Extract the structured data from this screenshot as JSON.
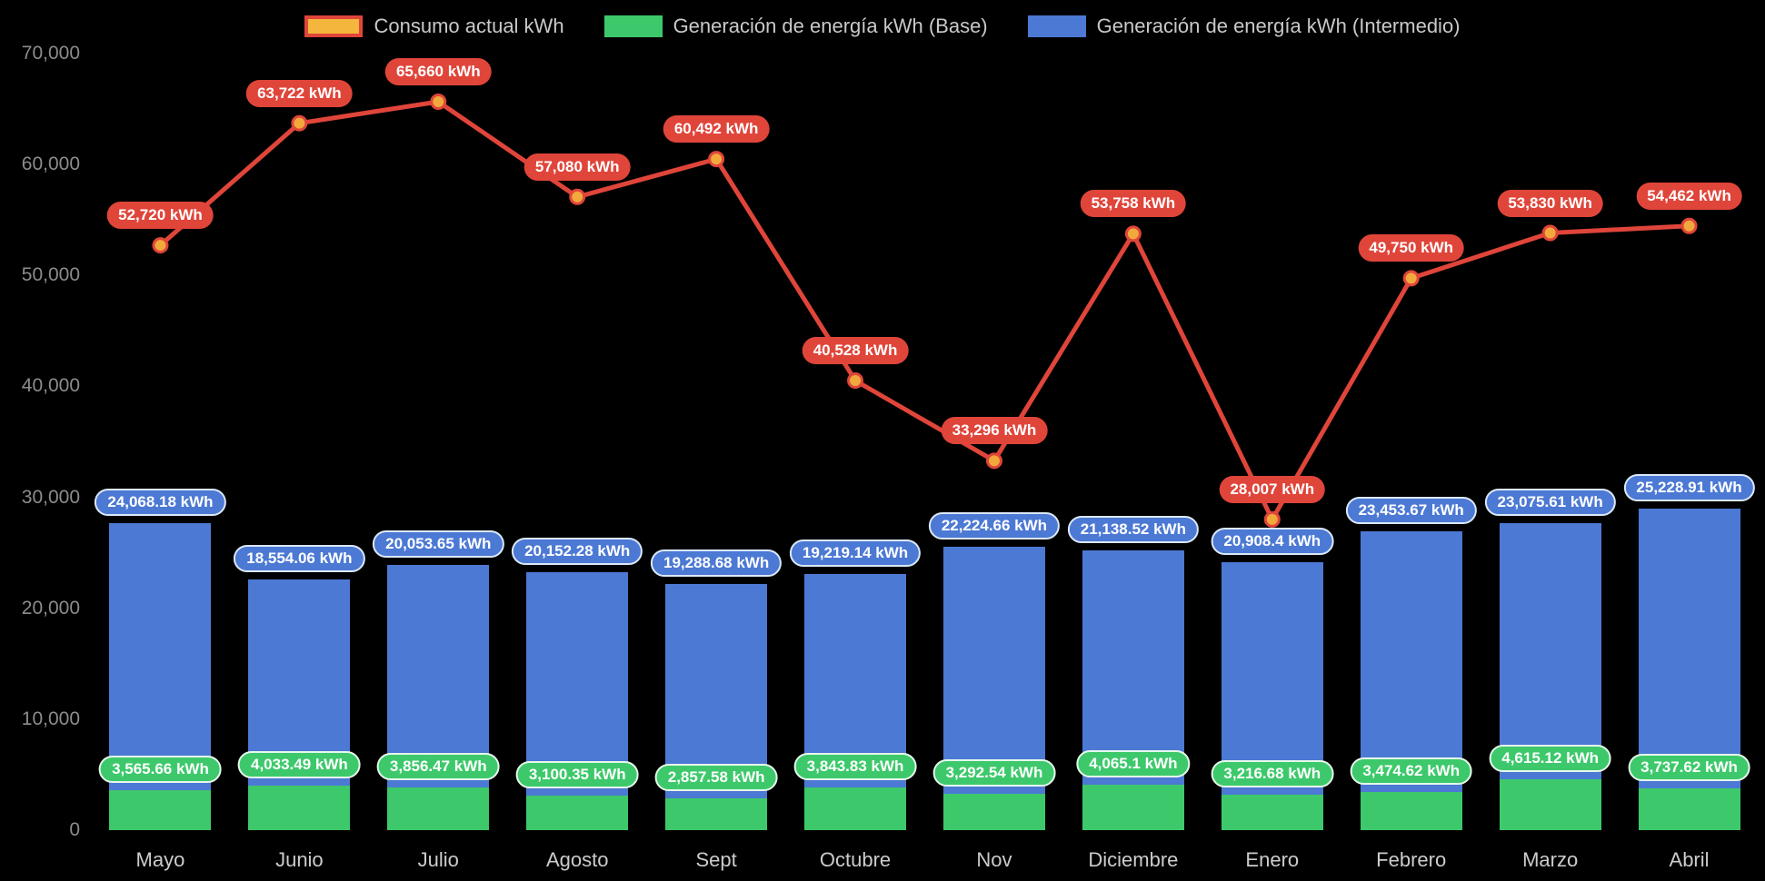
{
  "chart_data": {
    "type": "bar",
    "subtype": "stacked-bars-with-line",
    "background": "#000000",
    "legend_position": "top",
    "categories": [
      "Mayo",
      "Junio",
      "Julio",
      "Agosto",
      "Sept",
      "Octubre",
      "Nov",
      "Diciembre",
      "Enero",
      "Febrero",
      "Marzo",
      "Abril"
    ],
    "ylim": [
      0,
      70000
    ],
    "y_ticks": [
      {
        "value": 0,
        "label": "0"
      },
      {
        "value": 10000,
        "label": "10,000"
      },
      {
        "value": 20000,
        "label": "20,000"
      },
      {
        "value": 30000,
        "label": "30,000"
      },
      {
        "value": 40000,
        "label": "40,000"
      },
      {
        "value": 50000,
        "label": "50,000"
      },
      {
        "value": 60000,
        "label": "60,000"
      },
      {
        "value": 70000,
        "label": "70,000"
      }
    ],
    "series": [
      {
        "name": "Consumo actual kWh",
        "kind": "line",
        "color": "#E0453A",
        "point_fill": "#F2A93C",
        "legend_fill": "#F4B63C",
        "values": [
          52720,
          63722,
          65660,
          57080,
          60492,
          40528,
          33296,
          53758,
          28007,
          49750,
          53830,
          54462
        ],
        "labels": [
          "52,720 kWh",
          "63,722 kWh",
          "65,660 kWh",
          "57,080 kWh",
          "60,492 kWh",
          "40,528 kWh",
          "33,296 kWh",
          "53,758 kWh",
          "28,007 kWh",
          "49,750 kWh",
          "53,830 kWh",
          "54,462 kWh"
        ]
      },
      {
        "name": "Generación de energía kWh (Base)",
        "kind": "bar",
        "color": "#3DC96B",
        "badge_border": "#E6F8EC",
        "values": [
          3565.66,
          4033.49,
          3856.47,
          3100.35,
          2857.58,
          3843.83,
          3292.54,
          4065.1,
          3216.68,
          3474.62,
          4615.12,
          3737.62
        ],
        "labels": [
          "3,565.66 kWh",
          "4,033.49 kWh",
          "3,856.47 kWh",
          "3,100.35 kWh",
          "2,857.58 kWh",
          "3,843.83 kWh",
          "3,292.54 kWh",
          "4,065.1 kWh",
          "3,216.68 kWh",
          "3,474.62 kWh",
          "4,615.12 kWh",
          "3,737.62 kWh"
        ]
      },
      {
        "name": "Generación de energía kWh (Intermedio)",
        "kind": "bar",
        "color": "#4C79D4",
        "badge_border": "#DCE8F8",
        "values": [
          24068.18,
          18554.06,
          20053.65,
          20152.28,
          19288.68,
          19219.14,
          22224.66,
          21138.52,
          20908.4,
          23453.67,
          23075.61,
          25228.91
        ],
        "labels": [
          "24,068.18 kWh",
          "18,554.06 kWh",
          "20,053.65 kWh",
          "20,152.28 kWh",
          "19,288.68 kWh",
          "19,219.14 kWh",
          "22,224.66 kWh",
          "21,138.52 kWh",
          "20,908.4 kWh",
          "23,453.67 kWh",
          "23,075.61 kWh",
          "25,228.91 kWh"
        ]
      }
    ]
  }
}
